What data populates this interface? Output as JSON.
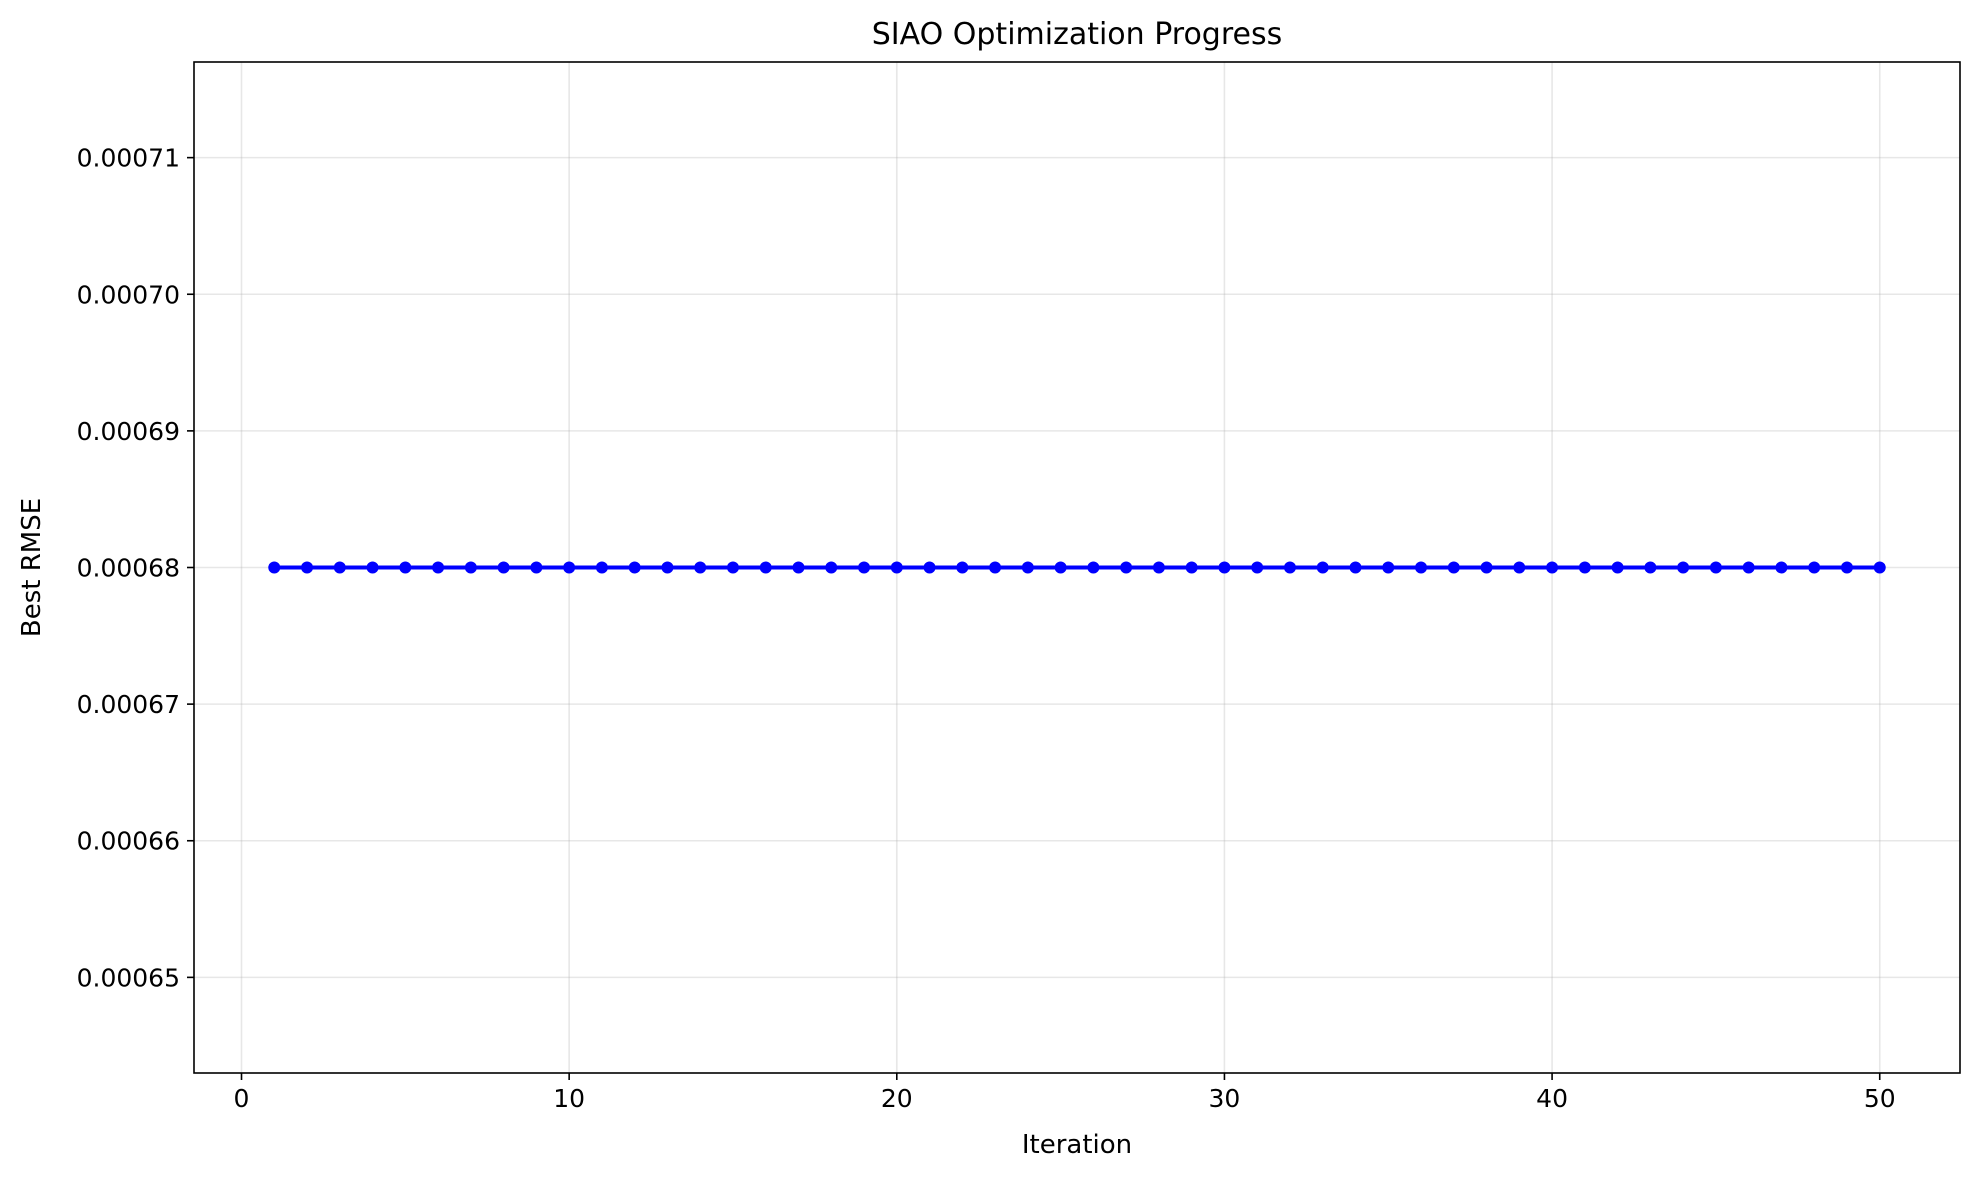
{
  "chart_data": {
    "type": "line",
    "title": "SIAO Optimization Progress",
    "xlabel": "Iteration",
    "ylabel": "Best RMSE",
    "xlim": [
      -1.45,
      52.45
    ],
    "ylim": [
      0.000643,
      0.000717
    ],
    "xticks": [
      0,
      10,
      20,
      30,
      40,
      50
    ],
    "xtick_labels": [
      "0",
      "10",
      "20",
      "30",
      "40",
      "50"
    ],
    "yticks": [
      0.00065,
      0.00066,
      0.00067,
      0.00068,
      0.00069,
      0.0007,
      0.00071
    ],
    "ytick_labels": [
      "0.00065",
      "0.00066",
      "0.00067",
      "0.00068",
      "0.00069",
      "0.00070",
      "0.00071"
    ],
    "grid": true,
    "series": [
      {
        "color": "#0000ff",
        "marker": "circle",
        "x": [
          1,
          2,
          3,
          4,
          5,
          6,
          7,
          8,
          9,
          10,
          11,
          12,
          13,
          14,
          15,
          16,
          17,
          18,
          19,
          20,
          21,
          22,
          23,
          24,
          25,
          26,
          27,
          28,
          29,
          30,
          31,
          32,
          33,
          34,
          35,
          36,
          37,
          38,
          39,
          40,
          41,
          42,
          43,
          44,
          45,
          46,
          47,
          48,
          49,
          50
        ],
        "values": [
          0.00068,
          0.00068,
          0.00068,
          0.00068,
          0.00068,
          0.00068,
          0.00068,
          0.00068,
          0.00068,
          0.00068,
          0.00068,
          0.00068,
          0.00068,
          0.00068,
          0.00068,
          0.00068,
          0.00068,
          0.00068,
          0.00068,
          0.00068,
          0.00068,
          0.00068,
          0.00068,
          0.00068,
          0.00068,
          0.00068,
          0.00068,
          0.00068,
          0.00068,
          0.00068,
          0.00068,
          0.00068,
          0.00068,
          0.00068,
          0.00068,
          0.00068,
          0.00068,
          0.00068,
          0.00068,
          0.00068,
          0.00068,
          0.00068,
          0.00068,
          0.00068,
          0.00068,
          0.00068,
          0.00068,
          0.00068,
          0.00068,
          0.00068
        ]
      }
    ]
  }
}
